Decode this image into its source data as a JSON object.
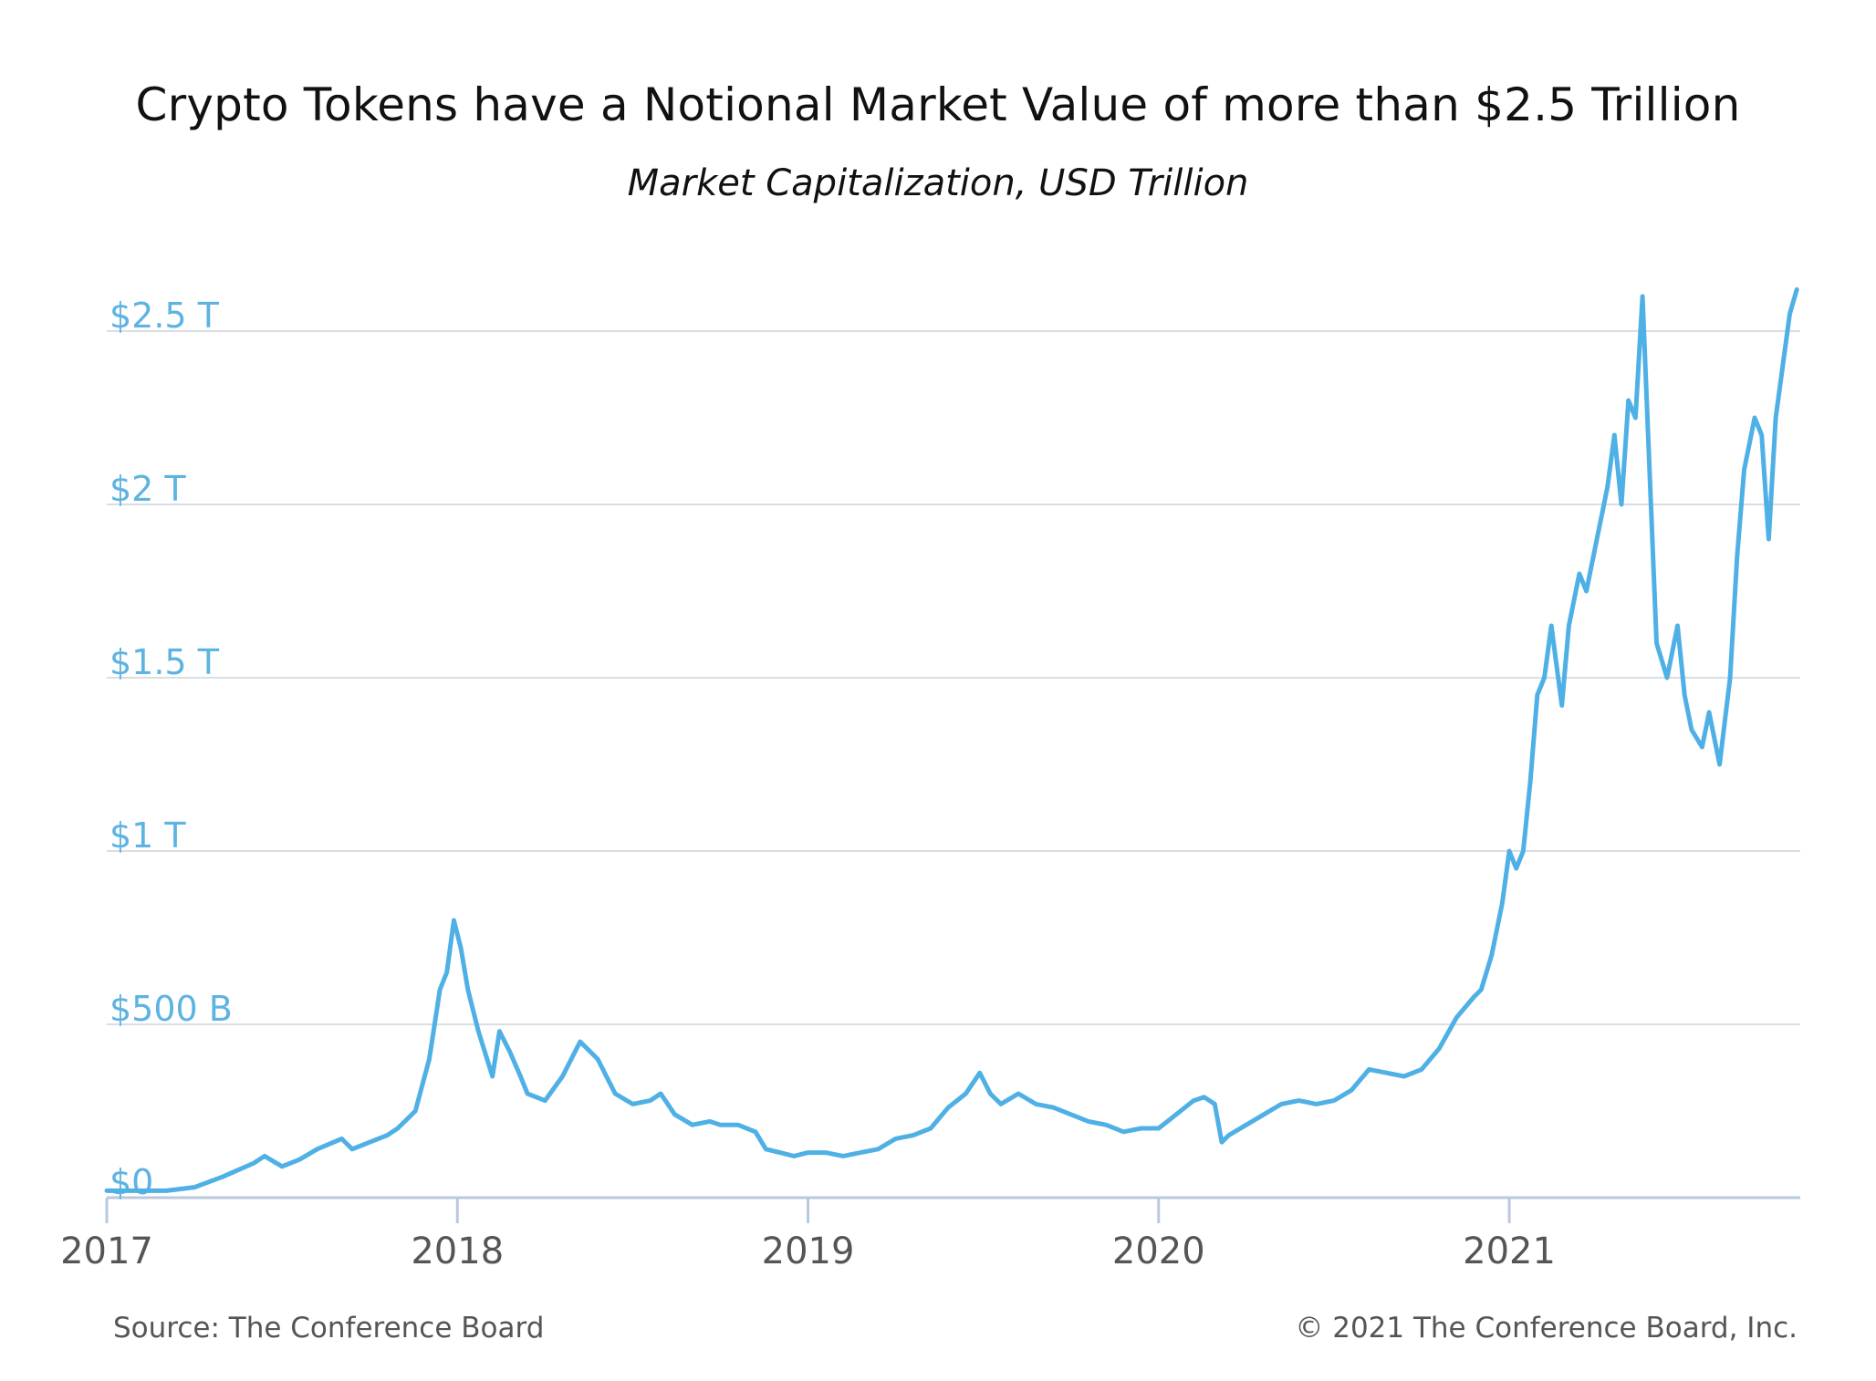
{
  "title": "Crypto Tokens have a Notional Market Value of more than $2.5 Trillion",
  "subtitle": "Market Capitalization, USD Trillion",
  "source": "Source: The Conference Board",
  "copyright": "© 2021 The Conference Board, Inc.",
  "colors": {
    "line": "#4FB0E5",
    "grid": "#DADDE3",
    "y_tick_label": "#5DB3E2",
    "x_tick_label": "#555555",
    "axis": "#B9C9DD"
  },
  "chart_data": {
    "type": "line",
    "title": "Crypto Tokens have a Notional Market Value of more than $2.5 Trillion",
    "subtitle": "Market Capitalization, USD Trillion",
    "xlabel": "",
    "ylabel": "",
    "x_unit": "year",
    "xlim": [
      2017.0,
      2021.83
    ],
    "ylim": [
      0,
      2.5
    ],
    "y_ticks": [
      {
        "value": 0,
        "label": "$0"
      },
      {
        "value": 0.5,
        "label": "$500 B"
      },
      {
        "value": 1.0,
        "label": "$1 T"
      },
      {
        "value": 1.5,
        "label": "$1.5 T"
      },
      {
        "value": 2.0,
        "label": "$2 T"
      },
      {
        "value": 2.5,
        "label": "$2.5 T"
      }
    ],
    "x_ticks": [
      {
        "value": 2017,
        "label": "2017"
      },
      {
        "value": 2018,
        "label": "2018"
      },
      {
        "value": 2019,
        "label": "2019"
      },
      {
        "value": 2020,
        "label": "2020"
      },
      {
        "value": 2021,
        "label": "2021"
      }
    ],
    "grid": true,
    "legend": "none",
    "series": [
      {
        "x": [
          2017.0,
          2017.08,
          2017.17,
          2017.25,
          2017.33,
          2017.42,
          2017.45,
          2017.5,
          2017.55,
          2017.6,
          2017.67,
          2017.7,
          2017.75,
          2017.8,
          2017.83,
          2017.88,
          2017.92,
          2017.95,
          2017.97,
          2017.99,
          2018.01,
          2018.03,
          2018.06,
          2018.1,
          2018.12,
          2018.15,
          2018.18,
          2018.2,
          2018.25,
          2018.3,
          2018.35,
          2018.4,
          2018.45,
          2018.5,
          2018.55,
          2018.58,
          2018.62,
          2018.67,
          2018.72,
          2018.75,
          2018.8,
          2018.85,
          2018.88,
          2018.92,
          2018.96,
          2019.0,
          2019.05,
          2019.1,
          2019.15,
          2019.2,
          2019.25,
          2019.3,
          2019.35,
          2019.4,
          2019.45,
          2019.49,
          2019.52,
          2019.55,
          2019.6,
          2019.65,
          2019.7,
          2019.75,
          2019.8,
          2019.85,
          2019.9,
          2019.95,
          2020.0,
          2020.05,
          2020.1,
          2020.13,
          2020.16,
          2020.18,
          2020.2,
          2020.25,
          2020.3,
          2020.35,
          2020.4,
          2020.45,
          2020.5,
          2020.55,
          2020.6,
          2020.65,
          2020.7,
          2020.75,
          2020.8,
          2020.85,
          2020.9,
          2020.92,
          2020.95,
          2020.98,
          2021.0,
          2021.02,
          2021.04,
          2021.06,
          2021.08,
          2021.1,
          2021.12,
          2021.15,
          2021.17,
          2021.2,
          2021.22,
          2021.25,
          2021.28,
          2021.3,
          2021.32,
          2021.34,
          2021.36,
          2021.38,
          2021.4,
          2021.42,
          2021.45,
          2021.48,
          2021.5,
          2021.52,
          2021.55,
          2021.57,
          2021.6,
          2021.63,
          2021.65,
          2021.67,
          2021.7,
          2021.72,
          2021.74,
          2021.76,
          2021.78,
          2021.8,
          2021.82
        ],
        "values": [
          0.02,
          0.02,
          0.02,
          0.03,
          0.06,
          0.1,
          0.12,
          0.09,
          0.11,
          0.14,
          0.17,
          0.14,
          0.16,
          0.18,
          0.2,
          0.25,
          0.4,
          0.6,
          0.65,
          0.8,
          0.72,
          0.6,
          0.48,
          0.35,
          0.48,
          0.42,
          0.35,
          0.3,
          0.28,
          0.35,
          0.45,
          0.4,
          0.3,
          0.27,
          0.28,
          0.3,
          0.24,
          0.21,
          0.22,
          0.21,
          0.21,
          0.19,
          0.14,
          0.13,
          0.12,
          0.13,
          0.13,
          0.12,
          0.13,
          0.14,
          0.17,
          0.18,
          0.2,
          0.26,
          0.3,
          0.36,
          0.3,
          0.27,
          0.3,
          0.27,
          0.26,
          0.24,
          0.22,
          0.21,
          0.19,
          0.2,
          0.2,
          0.24,
          0.28,
          0.29,
          0.27,
          0.16,
          0.18,
          0.21,
          0.24,
          0.27,
          0.28,
          0.27,
          0.28,
          0.31,
          0.37,
          0.36,
          0.35,
          0.37,
          0.43,
          0.52,
          0.58,
          0.6,
          0.7,
          0.85,
          1.0,
          0.95,
          1.0,
          1.2,
          1.45,
          1.5,
          1.65,
          1.42,
          1.65,
          1.8,
          1.75,
          1.9,
          2.05,
          2.2,
          2.0,
          2.3,
          2.25,
          2.6,
          2.1,
          1.6,
          1.5,
          1.65,
          1.45,
          1.35,
          1.3,
          1.4,
          1.25,
          1.5,
          1.85,
          2.1,
          2.25,
          2.2,
          1.9,
          2.25,
          2.4,
          2.55,
          2.62
        ]
      }
    ]
  }
}
